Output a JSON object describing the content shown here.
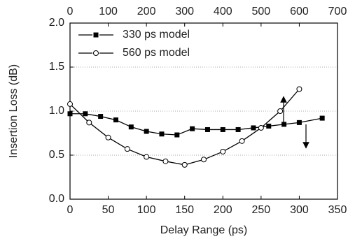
{
  "chart_data": {
    "type": "line",
    "xlabel": "Delay Range (ps)",
    "ylabel": "Insertion Loss (dB)",
    "xlim": [
      0,
      350
    ],
    "xticks": [
      0,
      50,
      100,
      150,
      200,
      250,
      300,
      350
    ],
    "x2lim": [
      0,
      700
    ],
    "x2ticks": [
      0,
      100,
      200,
      300,
      400,
      500,
      600,
      700
    ],
    "ylim": [
      0,
      2
    ],
    "yticks": [
      {
        "value": 0,
        "label": "0.0"
      },
      {
        "value": 0.5,
        "label": "0.5"
      },
      {
        "value": 1,
        "label": "1.0"
      },
      {
        "value": 1.5,
        "label": "1.5"
      },
      {
        "value": 2,
        "label": "2.0"
      }
    ],
    "grid": true,
    "legend": "upper left",
    "series": [
      {
        "name": "330 ps model",
        "color": "#000000",
        "marker": "square",
        "x": [
          0,
          20,
          40,
          60,
          80,
          100,
          120,
          140,
          160,
          180,
          200,
          220,
          240,
          260,
          280,
          300,
          330
        ],
        "values": [
          0.97,
          0.97,
          0.94,
          0.9,
          0.82,
          0.77,
          0.74,
          0.73,
          0.8,
          0.79,
          0.79,
          0.79,
          0.81,
          0.83,
          0.85,
          0.87,
          0.92
        ]
      },
      {
        "name": "560 ps model",
        "color": "#000000",
        "marker": "open-circle",
        "axis": "x2",
        "x": [
          0,
          50,
          100,
          150,
          200,
          250,
          300,
          350,
          400,
          450,
          500,
          550,
          600
        ],
        "values": [
          1.08,
          0.87,
          0.7,
          0.57,
          0.48,
          0.43,
          0.39,
          0.45,
          0.54,
          0.66,
          0.81,
          1.0,
          1.25
        ]
      }
    ]
  }
}
